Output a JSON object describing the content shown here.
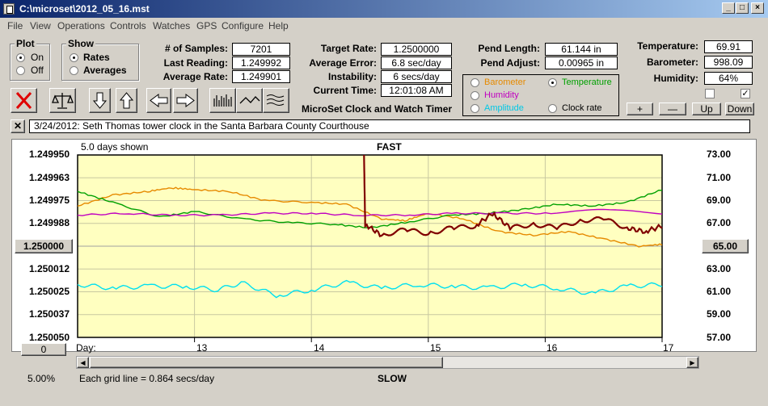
{
  "window": {
    "title": "C:\\microset\\2012_05_16.mst"
  },
  "title_buttons": [
    "_",
    "□",
    "×"
  ],
  "menu": [
    "File",
    "View",
    "Operations",
    "Controls",
    "Watches",
    "GPS",
    "Configure",
    "Help"
  ],
  "plot_group": {
    "label": "Plot",
    "options": [
      "On",
      "Off"
    ],
    "selected": "On"
  },
  "show_group": {
    "label": "Show",
    "options": [
      "Rates",
      "Averages"
    ],
    "selected": "Rates"
  },
  "fields_left": [
    {
      "label": "# of Samples:",
      "value": "7201"
    },
    {
      "label": "Last Reading:",
      "value": "1.249992"
    },
    {
      "label": "Average Rate:",
      "value": "1.249901"
    }
  ],
  "fields_mid": [
    {
      "label": "Target Rate:",
      "value": "1.2500000"
    },
    {
      "label": "Average Error:",
      "value": "6.8 sec/day"
    },
    {
      "label": "Instability:",
      "value": "6 secs/day"
    },
    {
      "label": "Current Time:",
      "value": "12:01:08 AM"
    }
  ],
  "fields_pend": [
    {
      "label": "Pend Length:",
      "value": "61.144 in"
    },
    {
      "label": "Pend Adjust:",
      "value": "0.00965 in"
    }
  ],
  "fields_env": [
    {
      "label": "Temperature:",
      "value": "69.91"
    },
    {
      "label": "Barometer:",
      "value": "998.09"
    },
    {
      "label": "Humidity:",
      "value": "64%"
    }
  ],
  "app_label": "MicroSet Clock and Watch Timer",
  "series_select": [
    {
      "label": "Barometer",
      "color": "#e68a00",
      "selected": false
    },
    {
      "label": "Temperature",
      "color": "#00a000",
      "selected": true
    },
    {
      "label": "Humidity",
      "color": "#c000c0",
      "selected": false
    },
    {
      "label": "Clock rate",
      "color": "#000000",
      "selected": false
    },
    {
      "label": "Amplitude",
      "color": "#00c8e6",
      "selected": false
    }
  ],
  "scale_buttons": [
    "+",
    "—",
    "Up",
    "Down"
  ],
  "checkboxes": [
    false,
    true
  ],
  "note": "3/24/2012: Seth Thomas tower clock in the Santa Barbara County Courthouse",
  "plot": {
    "days_shown": "5.0 days shown",
    "top_label": "FAST",
    "bottom_label": "SLOW",
    "left_ticks": [
      "1.249950",
      "1.249963",
      "1.249975",
      "1.249988",
      "1.250000",
      "1.250012",
      "1.250025",
      "1.250037",
      "1.250050"
    ],
    "right_ticks": [
      "73.00",
      "71.00",
      "69.00",
      "67.00",
      "65.00",
      "63.00",
      "61.00",
      "59.00",
      "57.00"
    ],
    "left_selected": "1.250000",
    "right_selected": "65.00",
    "day_label": "Day:",
    "day_ticks": [
      "13",
      "14",
      "15",
      "16",
      "17"
    ],
    "zero_button": "0",
    "grid_note": "Each grid line = 0.864 secs/day",
    "percent": "5.00%"
  },
  "chart_data": {
    "type": "line",
    "x_label": "Day:",
    "x_range": [
      12.0,
      17.0
    ],
    "y_left_range": [
      1.24995,
      1.25005
    ],
    "y_right_range": [
      57.0,
      73.0
    ],
    "series": [
      {
        "name": "Barometer",
        "color": "#e68a00",
        "points": [
          [
            12.0,
            1.249978
          ],
          [
            12.3,
            1.249972
          ],
          [
            12.6,
            1.24997
          ],
          [
            12.8,
            1.249968
          ],
          [
            13.0,
            1.249969
          ],
          [
            13.3,
            1.24997
          ],
          [
            13.6,
            1.249975
          ],
          [
            14.0,
            1.249976
          ],
          [
            14.3,
            1.249977
          ],
          [
            14.6,
            1.249985
          ],
          [
            14.8,
            1.249986
          ],
          [
            15.0,
            1.249982
          ],
          [
            15.3,
            1.249985
          ],
          [
            15.6,
            1.249992
          ],
          [
            15.9,
            1.249994
          ],
          [
            16.2,
            1.249992
          ],
          [
            16.5,
            1.249996
          ],
          [
            16.8,
            1.25
          ],
          [
            17.0,
            1.249999
          ]
        ]
      },
      {
        "name": "Temperature",
        "color": "#00a000",
        "points": [
          [
            12.0,
            1.24997
          ],
          [
            12.3,
            1.249976
          ],
          [
            12.7,
            1.249984
          ],
          [
            13.0,
            1.249981
          ],
          [
            13.4,
            1.249985
          ],
          [
            13.8,
            1.249987
          ],
          [
            14.2,
            1.249988
          ],
          [
            14.5,
            1.24999
          ],
          [
            14.8,
            1.249987
          ],
          [
            15.2,
            1.249983
          ],
          [
            15.5,
            1.249982
          ],
          [
            15.8,
            1.24998
          ],
          [
            16.1,
            1.249977
          ],
          [
            16.4,
            1.249978
          ],
          [
            16.7,
            1.249976
          ],
          [
            17.0,
            1.249969
          ]
        ]
      },
      {
        "name": "Humidity",
        "color": "#c000c0",
        "points": [
          [
            12.0,
            1.249983
          ],
          [
            12.4,
            1.249982
          ],
          [
            12.8,
            1.249983
          ],
          [
            13.2,
            1.249983
          ],
          [
            13.6,
            1.249982
          ],
          [
            14.0,
            1.249982
          ],
          [
            14.4,
            1.249983
          ],
          [
            14.8,
            1.249983
          ],
          [
            15.2,
            1.249982
          ],
          [
            15.6,
            1.249982
          ],
          [
            16.0,
            1.249982
          ],
          [
            16.5,
            1.24998
          ],
          [
            17.0,
            1.249982
          ]
        ]
      },
      {
        "name": "Clock rate",
        "color": "#800000",
        "points": [
          [
            14.45,
            1.24995
          ],
          [
            14.46,
            1.249988
          ],
          [
            14.6,
            1.249994
          ],
          [
            14.8,
            1.249991
          ],
          [
            15.0,
            1.249993
          ],
          [
            15.2,
            1.24999
          ],
          [
            15.4,
            1.249989
          ],
          [
            15.55,
            1.249982
          ],
          [
            15.7,
            1.24999
          ],
          [
            15.9,
            1.249988
          ],
          [
            16.1,
            1.24999
          ],
          [
            16.3,
            1.249986
          ],
          [
            16.5,
            1.249985
          ],
          [
            16.7,
            1.24999
          ],
          [
            16.85,
            1.249992
          ],
          [
            17.0,
            1.249989
          ]
        ]
      },
      {
        "name": "Amplitude",
        "color": "#00e0f0",
        "points": [
          [
            12.0,
            1.250021
          ],
          [
            12.3,
            1.250023
          ],
          [
            12.6,
            1.250022
          ],
          [
            12.9,
            1.250022
          ],
          [
            13.2,
            1.250024
          ],
          [
            13.4,
            1.25002
          ],
          [
            13.7,
            1.250027
          ],
          [
            14.0,
            1.250024
          ],
          [
            14.3,
            1.25002
          ],
          [
            14.6,
            1.250023
          ],
          [
            14.9,
            1.250021
          ],
          [
            15.2,
            1.250022
          ],
          [
            15.5,
            1.250023
          ],
          [
            15.8,
            1.250021
          ],
          [
            16.1,
            1.250023
          ],
          [
            16.4,
            1.250026
          ],
          [
            16.7,
            1.250022
          ],
          [
            17.0,
            1.250021
          ]
        ]
      }
    ]
  }
}
